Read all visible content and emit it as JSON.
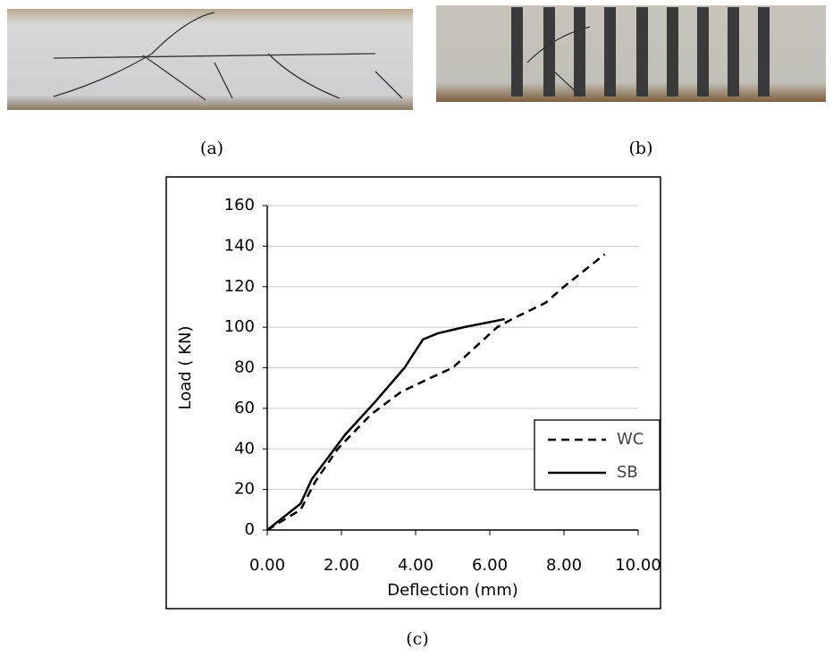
{
  "captions": {
    "a": "(a)",
    "b": "(b)",
    "c": "(c)"
  },
  "chart_data": {
    "type": "line",
    "x_label": "Deflection (mm)",
    "y_label": "Load ( KN)",
    "xlim": [
      0,
      10
    ],
    "xticks": [
      {
        "value": 0,
        "label": "0.00"
      },
      {
        "value": 2,
        "label": "2.00"
      },
      {
        "value": 4,
        "label": "4.00"
      },
      {
        "value": 6,
        "label": "6.00"
      },
      {
        "value": 8,
        "label": "8.00"
      },
      {
        "value": 10,
        "label": "10.00"
      }
    ],
    "ylim": [
      0,
      160
    ],
    "yticks": [
      0,
      20,
      40,
      60,
      80,
      100,
      120,
      140,
      160
    ],
    "grid": true,
    "legend": "lower right",
    "series": [
      {
        "name": "WC",
        "color": "#000000",
        "linestyle": "dashed",
        "x": [
          0,
          0.9,
          1.3,
          1.9,
          2.8,
          3.6,
          4.4,
          5.0,
          5.6,
          6.2,
          6.6,
          7.5,
          8.0,
          9.1
        ],
        "values": [
          0,
          10,
          24,
          40,
          57,
          68,
          75,
          80,
          90,
          100,
          104,
          112,
          120,
          136
        ]
      },
      {
        "name": "SB",
        "color": "#000000",
        "linestyle": "solid",
        "x": [
          0,
          0.9,
          1.2,
          2.1,
          2.9,
          3.7,
          4.2,
          4.6,
          5.3,
          6.4
        ],
        "values": [
          0,
          13,
          25,
          47,
          63,
          80,
          94,
          97,
          100,
          104
        ]
      }
    ]
  }
}
